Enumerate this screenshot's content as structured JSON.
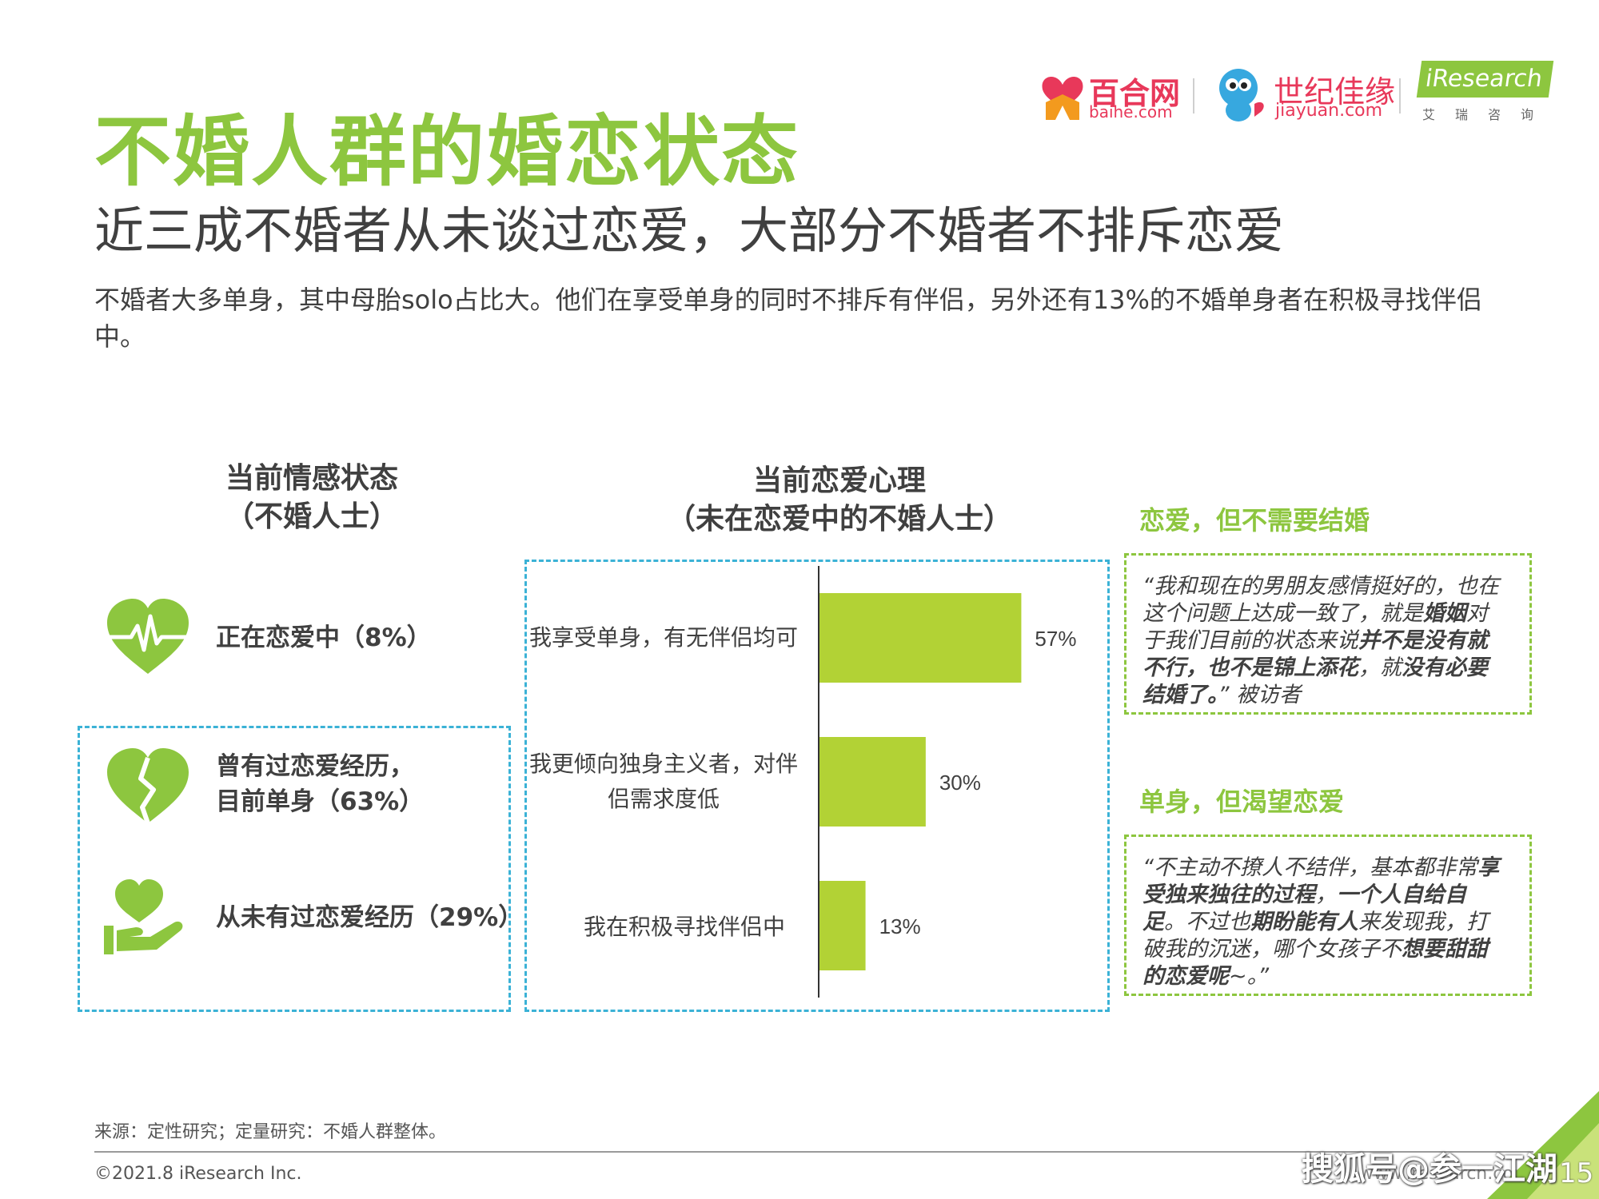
{
  "header": {
    "title": "不婚人群的婚恋状态",
    "subtitle": "近三成不婚者从未谈过恋爱，大部分不婚者不排斥恋爱",
    "description": "不婚者大多单身，其中母胎solo占比大。他们在享受单身的同时不排斥有伴侣，另外还有13%的不婚单身者在积极寻找伴侣中。"
  },
  "logos": {
    "baihe_name": "百合网",
    "baihe_domain": "baihe.com",
    "jiayuan_name": "世纪佳缘",
    "jiayuan_domain": "jiayuan.com",
    "iresearch_name": "iResearch",
    "iresearch_cn": "艾瑞咨询"
  },
  "left_panel": {
    "heading_line1": "当前情感状态",
    "heading_line2": "（不婚人士）",
    "items": [
      {
        "line1": "正在恋爱中（8%）",
        "line2": "",
        "icon": "heartbeat-heart-icon",
        "percent": 8
      },
      {
        "line1": "曾有过恋爱经历，",
        "line2": "目前单身（63%）",
        "icon": "broken-heart-icon",
        "percent": 63
      },
      {
        "line1": "从未有过恋爱经历（29%）",
        "line2": "",
        "icon": "heart-in-hand-icon",
        "percent": 29
      }
    ]
  },
  "mid_panel": {
    "heading_line1": "当前恋爱心理",
    "heading_line2": "（未在恋爱中的不婚人士）"
  },
  "chart_data": {
    "type": "bar",
    "orientation": "horizontal",
    "title": "",
    "xlabel": "",
    "ylabel": "",
    "xlim": [
      0,
      70
    ],
    "grid": false,
    "categories": [
      {
        "line1": "我享受单身，有无伴侣均可",
        "line2": ""
      },
      {
        "line1": "我更倾向独身主义者，对伴",
        "line2": "侣需求度低"
      },
      {
        "line1": "我在积极寻找伴侣中",
        "line2": ""
      }
    ],
    "values": [
      57,
      30,
      13
    ],
    "value_labels": [
      "57%",
      "30%",
      "13%"
    ],
    "bar_color": "#b2d235",
    "axis_color": "#333333"
  },
  "quotes": [
    {
      "heading": "恋爱，但不需要结婚",
      "segments": [
        {
          "t": "“我和现在的男朋友感情挺好的，也在这个问题上达成一致了，就是",
          "b": false
        },
        {
          "t": "婚姻",
          "b": true
        },
        {
          "t": "对于我们目前的状态来说",
          "b": false
        },
        {
          "t": "并不是没有就不行，也不是锦上添花",
          "b": true
        },
        {
          "t": "，就",
          "b": false
        },
        {
          "t": "没有必要结婚了。",
          "b": true
        },
        {
          "t": "” 被访者",
          "b": false
        }
      ]
    },
    {
      "heading": "单身，但渴望恋爱",
      "segments": [
        {
          "t": "“不主动不撩人不结伴，基本都非常",
          "b": false
        },
        {
          "t": "享受独来独往的过程",
          "b": true
        },
        {
          "t": "，",
          "b": false
        },
        {
          "t": "一个人自给自足",
          "b": true
        },
        {
          "t": "。不过也",
          "b": false
        },
        {
          "t": "期盼能有人",
          "b": true
        },
        {
          "t": "来发现我，打破我的沉迷，哪个女孩子不",
          "b": false
        },
        {
          "t": "想要甜甜的恋爱呢",
          "b": true
        },
        {
          "t": "~。”",
          "b": false
        }
      ]
    }
  ],
  "footer": {
    "source": "来源：定性研究；定量研究：不婚人群整体。",
    "copyright": "©2021.8 iResearch Inc.",
    "website": "www.iresearch.com.cn",
    "page_number": "15",
    "watermark": "搜狐号@参一江湖"
  },
  "colors": {
    "brand_green": "#8dc63f",
    "bar_green": "#b2d235",
    "dash_blue": "#3bb2d6",
    "brand_pink": "#e8385a"
  }
}
